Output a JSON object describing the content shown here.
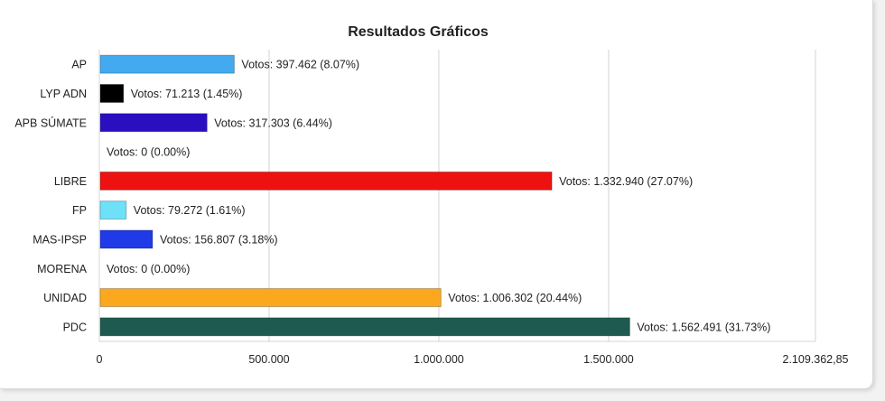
{
  "chart_data": {
    "type": "bar",
    "orientation": "horizontal",
    "title": "Resultados Gráficos",
    "categories": [
      "AP",
      "LYP ADN",
      "APB SÚMATE",
      "",
      "LIBRE",
      "FP",
      "MAS-IPSP",
      "MORENA",
      "UNIDAD",
      "PDC"
    ],
    "values": [
      397462,
      71213,
      317303,
      0,
      1332940,
      79272,
      156807,
      0,
      1006302,
      1562491
    ],
    "labels": [
      "Votos: 397.462 (8.07%)",
      "Votos: 71.213 (1.45%)",
      "Votos: 317.303 (6.44%)",
      "Votos: 0 (0.00%)",
      "Votos: 1.332.940 (27.07%)",
      "Votos: 79.272 (1.61%)",
      "Votos: 156.807 (3.18%)",
      "Votos: 0 (0.00%)",
      "Votos: 1.006.302 (20.44%)",
      "Votos: 1.562.491 (31.73%)"
    ],
    "colors": [
      "#44aaf0",
      "#000000",
      "#2a0fc0",
      "#ffffff",
      "#ee1111",
      "#6ee0f8",
      "#1f3ae6",
      "#ffffff",
      "#fca81f",
      "#1e5a50"
    ],
    "xlim": [
      0,
      2109362.85
    ],
    "xticks": [
      0,
      500000,
      1000000,
      1500000,
      2109362.85
    ],
    "xtick_labels": [
      "0",
      "500.000",
      "1.000.000",
      "1.500.000",
      "2.109.362,85"
    ],
    "xlabel": "",
    "ylabel": "",
    "grid": true,
    "legend": "none"
  }
}
